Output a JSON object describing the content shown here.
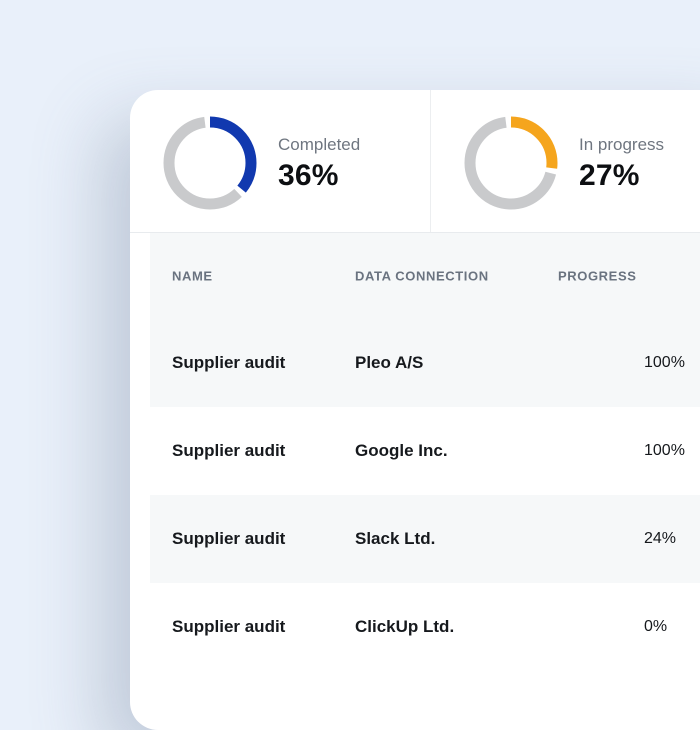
{
  "theme": {
    "page_bg": "#e9f0fa",
    "card_bg": "#ffffff",
    "accent_blue": "#1139af",
    "accent_orange": "#f5a51d",
    "donut_track": "#c9cacc",
    "row_alt_bg": "#f6f8f9"
  },
  "stats": [
    {
      "label": "Completed",
      "value": "36%",
      "percent": 36,
      "color": "#1139af"
    },
    {
      "label": "In progress",
      "value": "27%",
      "percent": 27,
      "color": "#f5a51d"
    }
  ],
  "table": {
    "columns": [
      "NAME",
      "DATA CONNECTION",
      "PROGRESS"
    ],
    "rows": [
      {
        "name": "Supplier audit",
        "connection": "Pleo A/S",
        "progress": 100,
        "progress_label": "100%"
      },
      {
        "name": "Supplier audit",
        "connection": "Google Inc.",
        "progress": 100,
        "progress_label": "100%"
      },
      {
        "name": "Supplier audit",
        "connection": "Slack Ltd.",
        "progress": 24,
        "progress_label": "24%"
      },
      {
        "name": "Supplier audit",
        "connection": "ClickUp Ltd.",
        "progress": 0,
        "progress_label": "0%"
      }
    ]
  }
}
